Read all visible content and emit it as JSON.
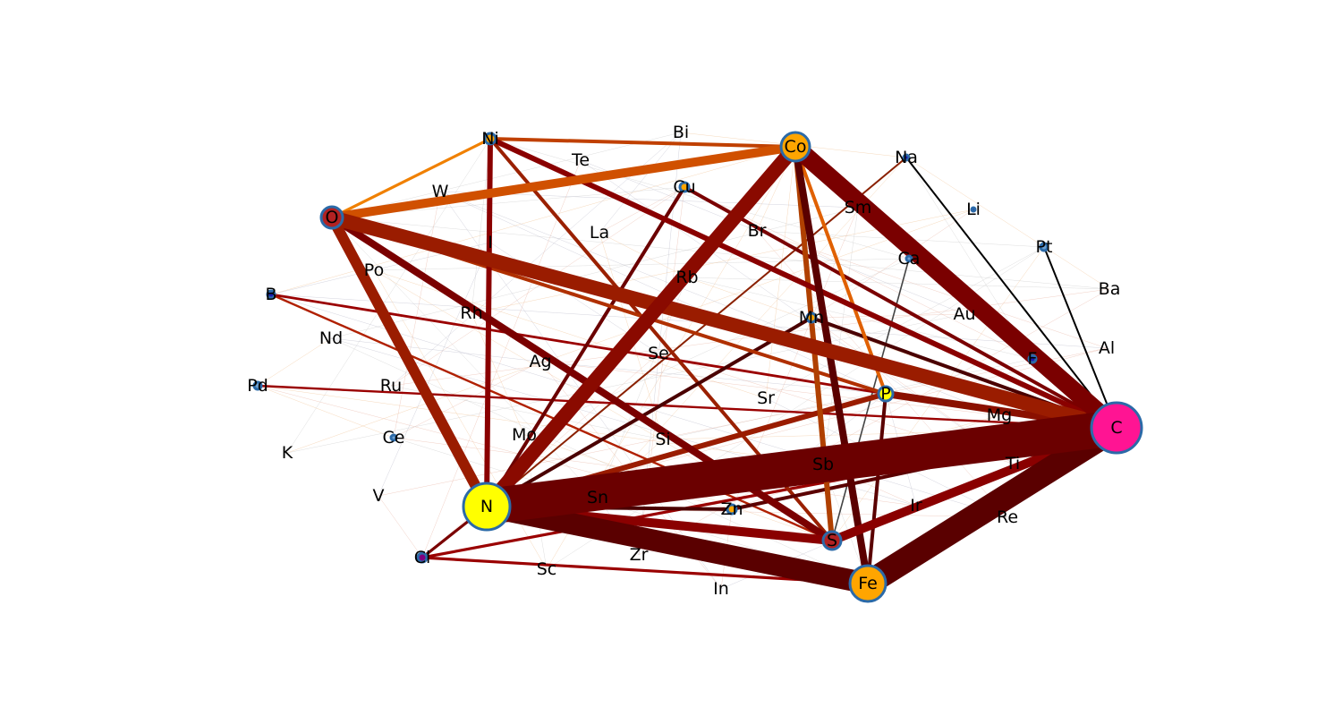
{
  "chart_data": {
    "type": "network",
    "title": "",
    "nodes": [
      {
        "id": "C",
        "size": 28,
        "color": "#ff1493"
      },
      {
        "id": "N",
        "size": 26,
        "color": "#ffff00"
      },
      {
        "id": "Fe",
        "size": 20,
        "color": "#ffa500"
      },
      {
        "id": "Co",
        "size": 16,
        "color": "#ffa500"
      },
      {
        "id": "O",
        "size": 12,
        "color": "#b22222"
      },
      {
        "id": "S",
        "size": 10,
        "color": "#b22222"
      },
      {
        "id": "P",
        "size": 8,
        "color": "#ffff00"
      },
      {
        "id": "Ni",
        "size": 6,
        "color": "#ffa500"
      },
      {
        "id": "Cu",
        "size": 5,
        "color": "#ffa500"
      },
      {
        "id": "Mn",
        "size": 5,
        "color": "#ffa500"
      },
      {
        "id": "Zn",
        "size": 5,
        "color": "#ffa500"
      },
      {
        "id": "Cl",
        "size": 5,
        "color": "#800080"
      },
      {
        "id": "F",
        "size": 4,
        "color": "#1a1ab0"
      },
      {
        "id": "B",
        "size": 4,
        "color": "#1a1ab0"
      },
      {
        "id": "Pd",
        "size": 4,
        "color": "#6fa0d0"
      },
      {
        "id": "Pt",
        "size": 4,
        "color": "#6fa0d0"
      },
      {
        "id": "Na",
        "size": 3,
        "color": "#1a1ab0"
      },
      {
        "id": "Ca",
        "size": 3,
        "color": "#6fa0d0"
      },
      {
        "id": "Ce",
        "size": 3,
        "color": "#6fa0d0"
      },
      {
        "id": "Li",
        "size": 2,
        "color": "#1a1ab0"
      },
      {
        "id": "Bi",
        "size": 0
      },
      {
        "id": "Te",
        "size": 0
      },
      {
        "id": "W",
        "size": 0
      },
      {
        "id": "I",
        "size": 0
      },
      {
        "id": "La",
        "size": 0
      },
      {
        "id": "Br",
        "size": 0
      },
      {
        "id": "Sm",
        "size": 0
      },
      {
        "id": "Po",
        "size": 0
      },
      {
        "id": "Rb",
        "size": 0
      },
      {
        "id": "Rh",
        "size": 0
      },
      {
        "id": "Nd",
        "size": 0
      },
      {
        "id": "Au",
        "size": 0
      },
      {
        "id": "Ba",
        "size": 0
      },
      {
        "id": "Se",
        "size": 0
      },
      {
        "id": "Ag",
        "size": 0
      },
      {
        "id": "Al",
        "size": 0
      },
      {
        "id": "Ru",
        "size": 0
      },
      {
        "id": "Sr",
        "size": 0
      },
      {
        "id": "Mg",
        "size": 0
      },
      {
        "id": "Mo",
        "size": 0
      },
      {
        "id": "Si",
        "size": 0
      },
      {
        "id": "K",
        "size": 0
      },
      {
        "id": "Sb",
        "size": 0
      },
      {
        "id": "Ti",
        "size": 0
      },
      {
        "id": "Sn",
        "size": 0
      },
      {
        "id": "V",
        "size": 0
      },
      {
        "id": "Ir",
        "size": 0
      },
      {
        "id": "Re",
        "size": 0
      },
      {
        "id": "Zr",
        "size": 0
      },
      {
        "id": "Sc",
        "size": 0
      },
      {
        "id": "In",
        "size": 0
      }
    ],
    "edges": [
      {
        "source": "N",
        "target": "C",
        "weight": 10,
        "color": "#6b0000"
      },
      {
        "source": "Fe",
        "target": "C",
        "weight": 7,
        "color": "#5a0000"
      },
      {
        "source": "N",
        "target": "Fe",
        "weight": 6,
        "color": "#5a0000"
      },
      {
        "source": "Co",
        "target": "C",
        "weight": 5,
        "color": "#7a0000"
      },
      {
        "source": "O",
        "target": "C",
        "weight": 4,
        "color": "#9a1c00"
      },
      {
        "source": "N",
        "target": "Co",
        "weight": 4,
        "color": "#8a0a00"
      },
      {
        "source": "O",
        "target": "N",
        "weight": 3,
        "color": "#9a1c00"
      },
      {
        "source": "O",
        "target": "Co",
        "weight": 2.5,
        "color": "#d05000"
      },
      {
        "source": "S",
        "target": "C",
        "weight": 2.5,
        "color": "#8a0000"
      },
      {
        "source": "N",
        "target": "S",
        "weight": 2.5,
        "color": "#8a0000"
      },
      {
        "source": "P",
        "target": "C",
        "weight": 2,
        "color": "#8a1000"
      },
      {
        "source": "O",
        "target": "S",
        "weight": 2,
        "color": "#7a0000"
      },
      {
        "source": "N",
        "target": "P",
        "weight": 1.5,
        "color": "#9a1c00"
      },
      {
        "source": "Co",
        "target": "Fe",
        "weight": 2,
        "color": "#5a0000"
      },
      {
        "source": "Co",
        "target": "S",
        "weight": 1.5,
        "color": "#b04000"
      },
      {
        "source": "Ni",
        "target": "N",
        "weight": 1.5,
        "color": "#8a0000"
      },
      {
        "source": "Ni",
        "target": "C",
        "weight": 1.5,
        "color": "#8a0000"
      },
      {
        "source": "Ni",
        "target": "Co",
        "weight": 1,
        "color": "#c04000"
      },
      {
        "source": "Ni",
        "target": "S",
        "weight": 1,
        "color": "#9a2000"
      },
      {
        "source": "Cu",
        "target": "N",
        "weight": 1,
        "color": "#6b0000"
      },
      {
        "source": "Cu",
        "target": "C",
        "weight": 1,
        "color": "#7a0000"
      },
      {
        "source": "Mn",
        "target": "N",
        "weight": 1,
        "color": "#4a0000"
      },
      {
        "source": "Mn",
        "target": "C",
        "weight": 1,
        "color": "#4a0000"
      },
      {
        "source": "P",
        "target": "Fe",
        "weight": 1,
        "color": "#5a0000"
      },
      {
        "source": "O",
        "target": "P",
        "weight": 1,
        "color": "#b03000"
      },
      {
        "source": "Co",
        "target": "P",
        "weight": 1,
        "color": "#e06000"
      },
      {
        "source": "O",
        "target": "Ni",
        "weight": 0.8,
        "color": "#f08000"
      },
      {
        "source": "N",
        "target": "Zn",
        "weight": 1,
        "color": "#4a0000"
      },
      {
        "source": "Zn",
        "target": "C",
        "weight": 1,
        "color": "#5a0000"
      },
      {
        "source": "Cl",
        "target": "N",
        "weight": 0.8,
        "color": "#7a0000"
      },
      {
        "source": "Cl",
        "target": "Fe",
        "weight": 0.8,
        "color": "#9a0000"
      },
      {
        "source": "Cl",
        "target": "C",
        "weight": 0.8,
        "color": "#9a0000"
      },
      {
        "source": "B",
        "target": "P",
        "weight": 0.7,
        "color": "#9a0000"
      },
      {
        "source": "B",
        "target": "S",
        "weight": 0.6,
        "color": "#b02000"
      },
      {
        "source": "Pd",
        "target": "C",
        "weight": 0.6,
        "color": "#9a0000"
      },
      {
        "source": "F",
        "target": "C",
        "weight": 0.8,
        "color": "#7a0000"
      },
      {
        "source": "Pt",
        "target": "C",
        "weight": 0.5,
        "color": "#000000"
      },
      {
        "source": "Na",
        "target": "C",
        "weight": 0.5,
        "color": "#000000"
      },
      {
        "source": "Na",
        "target": "N",
        "weight": 0.5,
        "color": "#8a2000"
      },
      {
        "source": "Ca",
        "target": "S",
        "weight": 0.4,
        "color": "#444444"
      }
    ]
  }
}
